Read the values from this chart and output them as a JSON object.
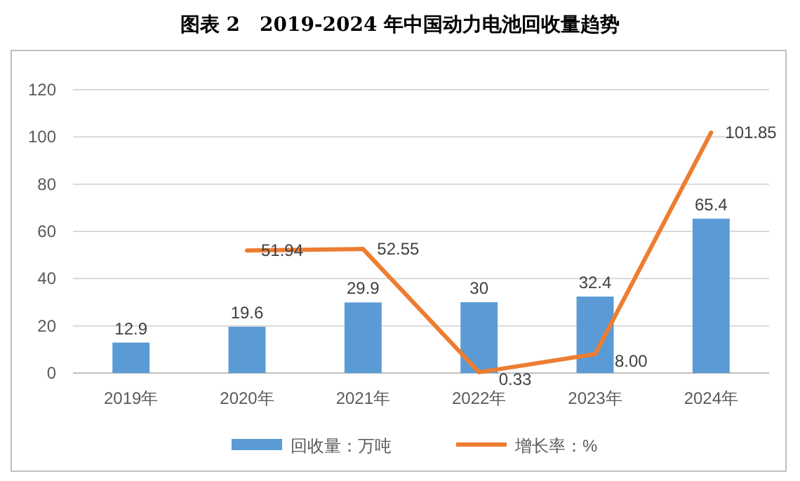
{
  "chart_data": {
    "type": "bar",
    "title": "图表 2　2019-2024 年中国动力电池回收量趋势",
    "categories": [
      "2019年",
      "2020年",
      "2021年",
      "2022年",
      "2023年",
      "2024年"
    ],
    "series": [
      {
        "name": "回收量：万吨",
        "color": "#5b9bd5",
        "values": [
          12.9,
          19.6,
          29.9,
          30,
          32.4,
          65.4
        ],
        "value_labels": [
          "12.9",
          "19.6",
          "29.9",
          "30",
          "32.4",
          "65.4"
        ]
      },
      {
        "type": "line",
        "name": "增长率：%",
        "color": "#ed7d31",
        "values": [
          null,
          51.94,
          52.55,
          0.33,
          8.0,
          101.85
        ],
        "value_labels": [
          null,
          "51.94",
          "52.55",
          "0.33",
          "8.00",
          "101.85"
        ]
      }
    ],
    "ylim": [
      0,
      120
    ],
    "yticks": [
      0,
      20,
      40,
      60,
      80,
      100,
      120
    ],
    "grid": "y",
    "legend": "bottom"
  }
}
